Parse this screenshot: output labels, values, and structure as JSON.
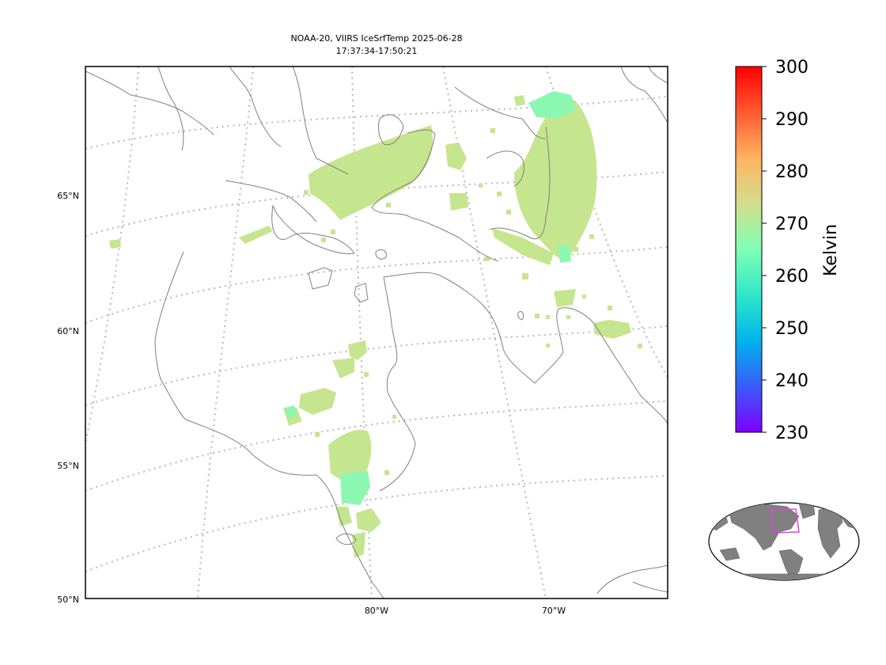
{
  "title": {
    "line1": "NOAA-20, VIIRS IceSrfTemp 2025-06-28",
    "line2": "17:37:34-17:50:21"
  },
  "map": {
    "lat_labels": [
      "65°N",
      "60°N",
      "55°N",
      "50°N"
    ],
    "lon_labels": [
      "80°W",
      "70°W"
    ],
    "gridlines": "dotted",
    "coastline_color": "#808080"
  },
  "colorbar": {
    "label": "Kelvin",
    "ticks": [
      "300",
      "290",
      "280",
      "270",
      "260",
      "250",
      "240",
      "230"
    ],
    "range": [
      230,
      300
    ],
    "colormap": "rainbow",
    "colors": [
      "#7f00ff",
      "#3a5cfb",
      "#00b4ec",
      "#2ee8c9",
      "#80ffb4",
      "#d2de8c",
      "#ffb360",
      "#ff5a30",
      "#ff0000"
    ]
  },
  "data_color": {
    "dominant": "#c6e58f",
    "cooler": "#8cf7b0",
    "coolest": "#88f6c8"
  },
  "inset": {
    "description_icon": "globe-locator-icon",
    "land_color": "#808080",
    "highlight_color": "#e040e0"
  }
}
